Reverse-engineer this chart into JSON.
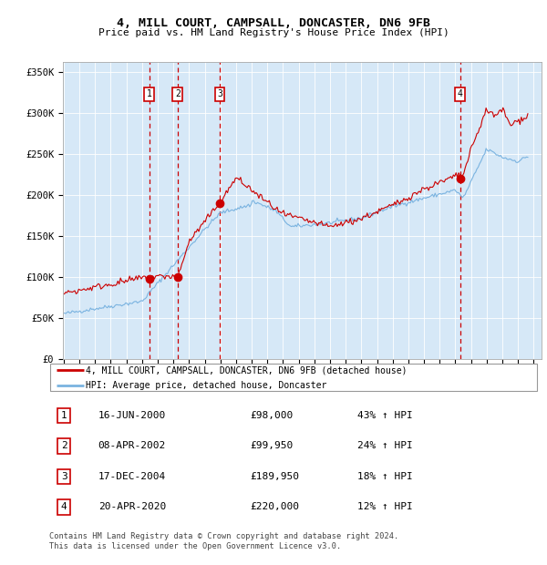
{
  "title1": "4, MILL COURT, CAMPSALL, DONCASTER, DN6 9FB",
  "title2": "Price paid vs. HM Land Registry's House Price Index (HPI)",
  "ylabel_ticks": [
    "£0",
    "£50K",
    "£100K",
    "£150K",
    "£200K",
    "£250K",
    "£300K",
    "£350K"
  ],
  "ytick_vals": [
    0,
    50000,
    100000,
    150000,
    200000,
    250000,
    300000,
    350000
  ],
  "ylim": [
    0,
    362000
  ],
  "xlim_start": 1994.95,
  "xlim_end": 2025.5,
  "background_color": "#d6e8f7",
  "grid_color": "#ffffff",
  "hpi_color": "#7ab3e0",
  "price_color": "#cc0000",
  "sales": [
    {
      "num": 1,
      "date_str": "16-JUN-2000",
      "date_x": 2000.46,
      "price": 98000,
      "label": "1",
      "pct": "43% ↑ HPI"
    },
    {
      "num": 2,
      "date_str": "08-APR-2002",
      "date_x": 2002.27,
      "price": 99950,
      "label": "2",
      "pct": "24% ↑ HPI"
    },
    {
      "num": 3,
      "date_str": "17-DEC-2004",
      "date_x": 2004.96,
      "price": 189950,
      "label": "3",
      "pct": "18% ↑ HPI"
    },
    {
      "num": 4,
      "date_str": "20-APR-2020",
      "date_x": 2020.3,
      "price": 220000,
      "label": "4",
      "pct": "12% ↑ HPI"
    }
  ],
  "legend_line1": "4, MILL COURT, CAMPSALL, DONCASTER, DN6 9FB (detached house)",
  "legend_line2": "HPI: Average price, detached house, Doncaster",
  "footer1": "Contains HM Land Registry data © Crown copyright and database right 2024.",
  "footer2": "This data is licensed under the Open Government Licence v3.0."
}
